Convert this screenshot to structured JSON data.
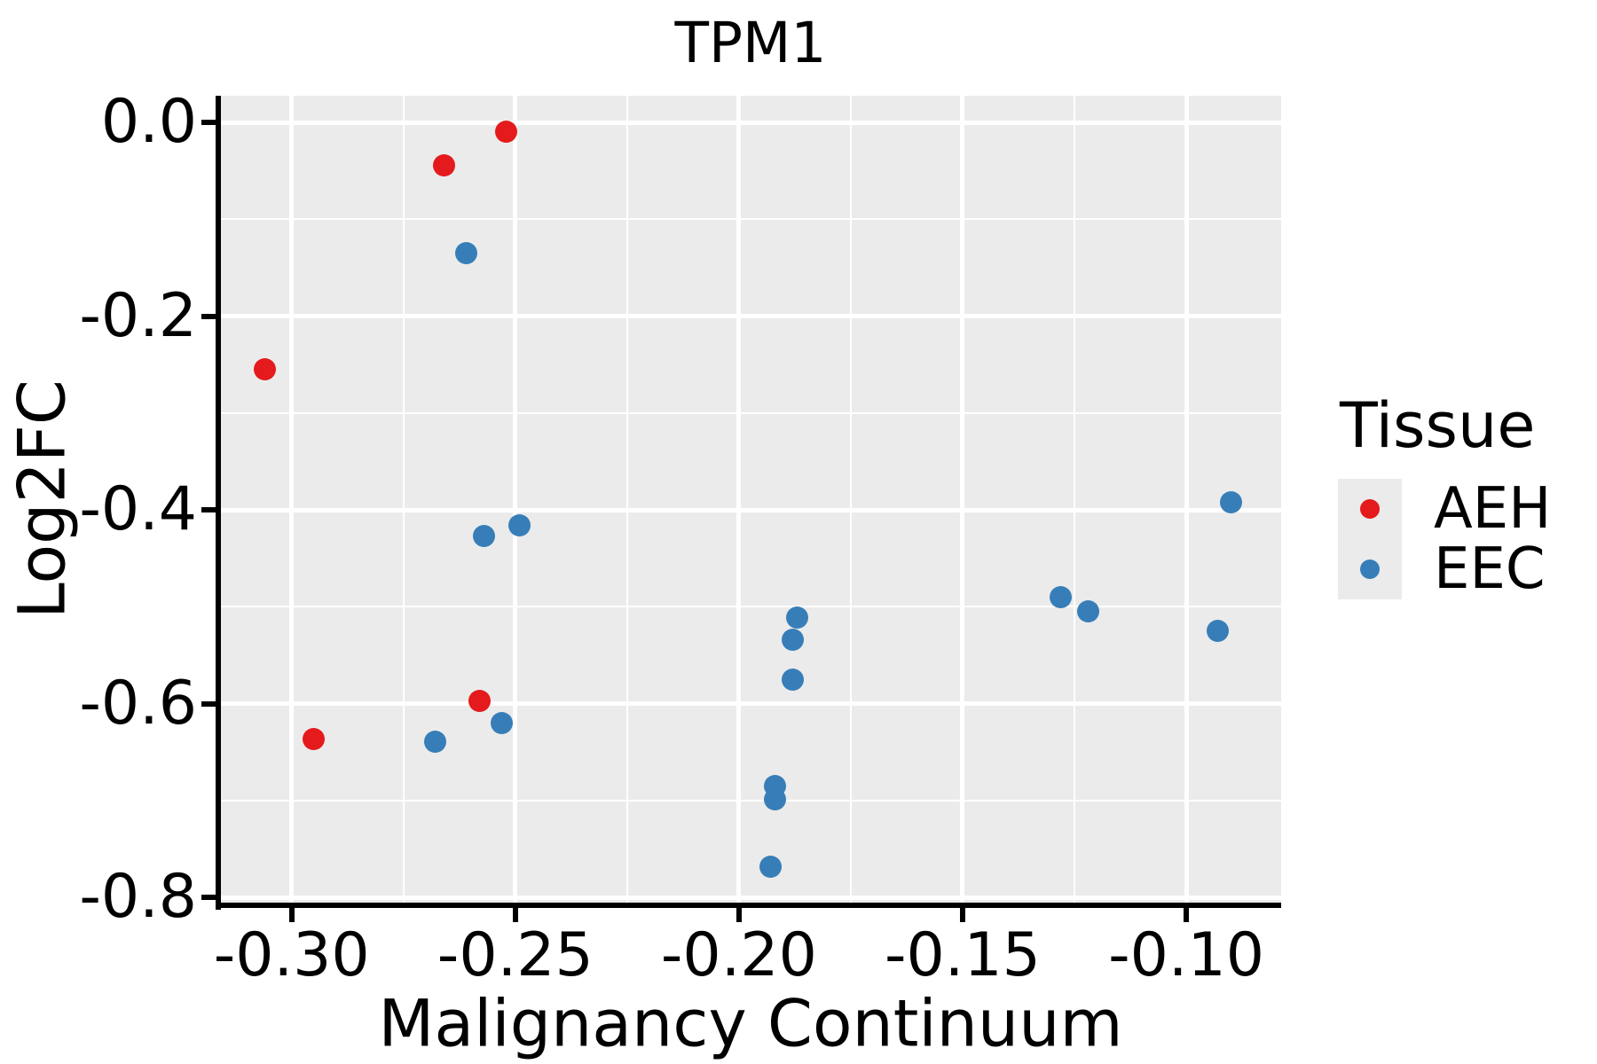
{
  "title": "TPM1",
  "colors": {
    "aeh": "#e41a1c",
    "eec": "#377eb8",
    "panel_bg": "#ebebeb",
    "grid": "#ffffff",
    "axis": "#000000",
    "text": "#000000",
    "legend_key_bg": "#ebebeb"
  },
  "legend": {
    "title": "Tissue",
    "items": [
      {
        "label": "AEH",
        "color": "#e41a1c"
      },
      {
        "label": "EEC",
        "color": "#377eb8"
      }
    ]
  },
  "chart_data": {
    "type": "scatter",
    "title": "TPM1",
    "xlabel": "Malignancy Continuum",
    "ylabel": "Log2FC",
    "xlim": [
      -0.316,
      -0.0788
    ],
    "ylim": [
      -0.8073,
      0.0275
    ],
    "grid": true,
    "legend_position": "right",
    "x_major_ticks": [
      -0.3,
      -0.25,
      -0.2,
      -0.15,
      -0.1
    ],
    "x_tick_labels": [
      "-0.30",
      "-0.25",
      "-0.20",
      "-0.15",
      "-0.10"
    ],
    "x_minor_ticks": [
      -0.275,
      -0.225,
      -0.175,
      -0.125
    ],
    "y_major_ticks": [
      0.0,
      -0.2,
      -0.4,
      -0.6,
      -0.8
    ],
    "y_tick_labels": [
      "0.0",
      "-0.2",
      "-0.4",
      "-0.6",
      "-0.8"
    ],
    "y_minor_ticks": [
      -0.1,
      -0.3,
      -0.5,
      -0.7
    ],
    "series": [
      {
        "name": "AEH",
        "color": "#e41a1c",
        "points": [
          [
            -0.252,
            -0.01
          ],
          [
            -0.266,
            -0.044
          ],
          [
            -0.306,
            -0.255
          ],
          [
            -0.258,
            -0.597
          ],
          [
            -0.295,
            -0.637
          ]
        ]
      },
      {
        "name": "EEC",
        "color": "#377eb8",
        "points": [
          [
            -0.261,
            -0.135
          ],
          [
            -0.249,
            -0.416
          ],
          [
            -0.257,
            -0.427
          ],
          [
            -0.253,
            -0.62
          ],
          [
            -0.268,
            -0.639
          ],
          [
            -0.187,
            -0.511
          ],
          [
            -0.188,
            -0.534
          ],
          [
            -0.188,
            -0.575
          ],
          [
            -0.192,
            -0.685
          ],
          [
            -0.192,
            -0.699
          ],
          [
            -0.193,
            -0.768
          ],
          [
            -0.128,
            -0.49
          ],
          [
            -0.122,
            -0.505
          ],
          [
            -0.09,
            -0.392
          ],
          [
            -0.093,
            -0.525
          ]
        ]
      }
    ]
  }
}
